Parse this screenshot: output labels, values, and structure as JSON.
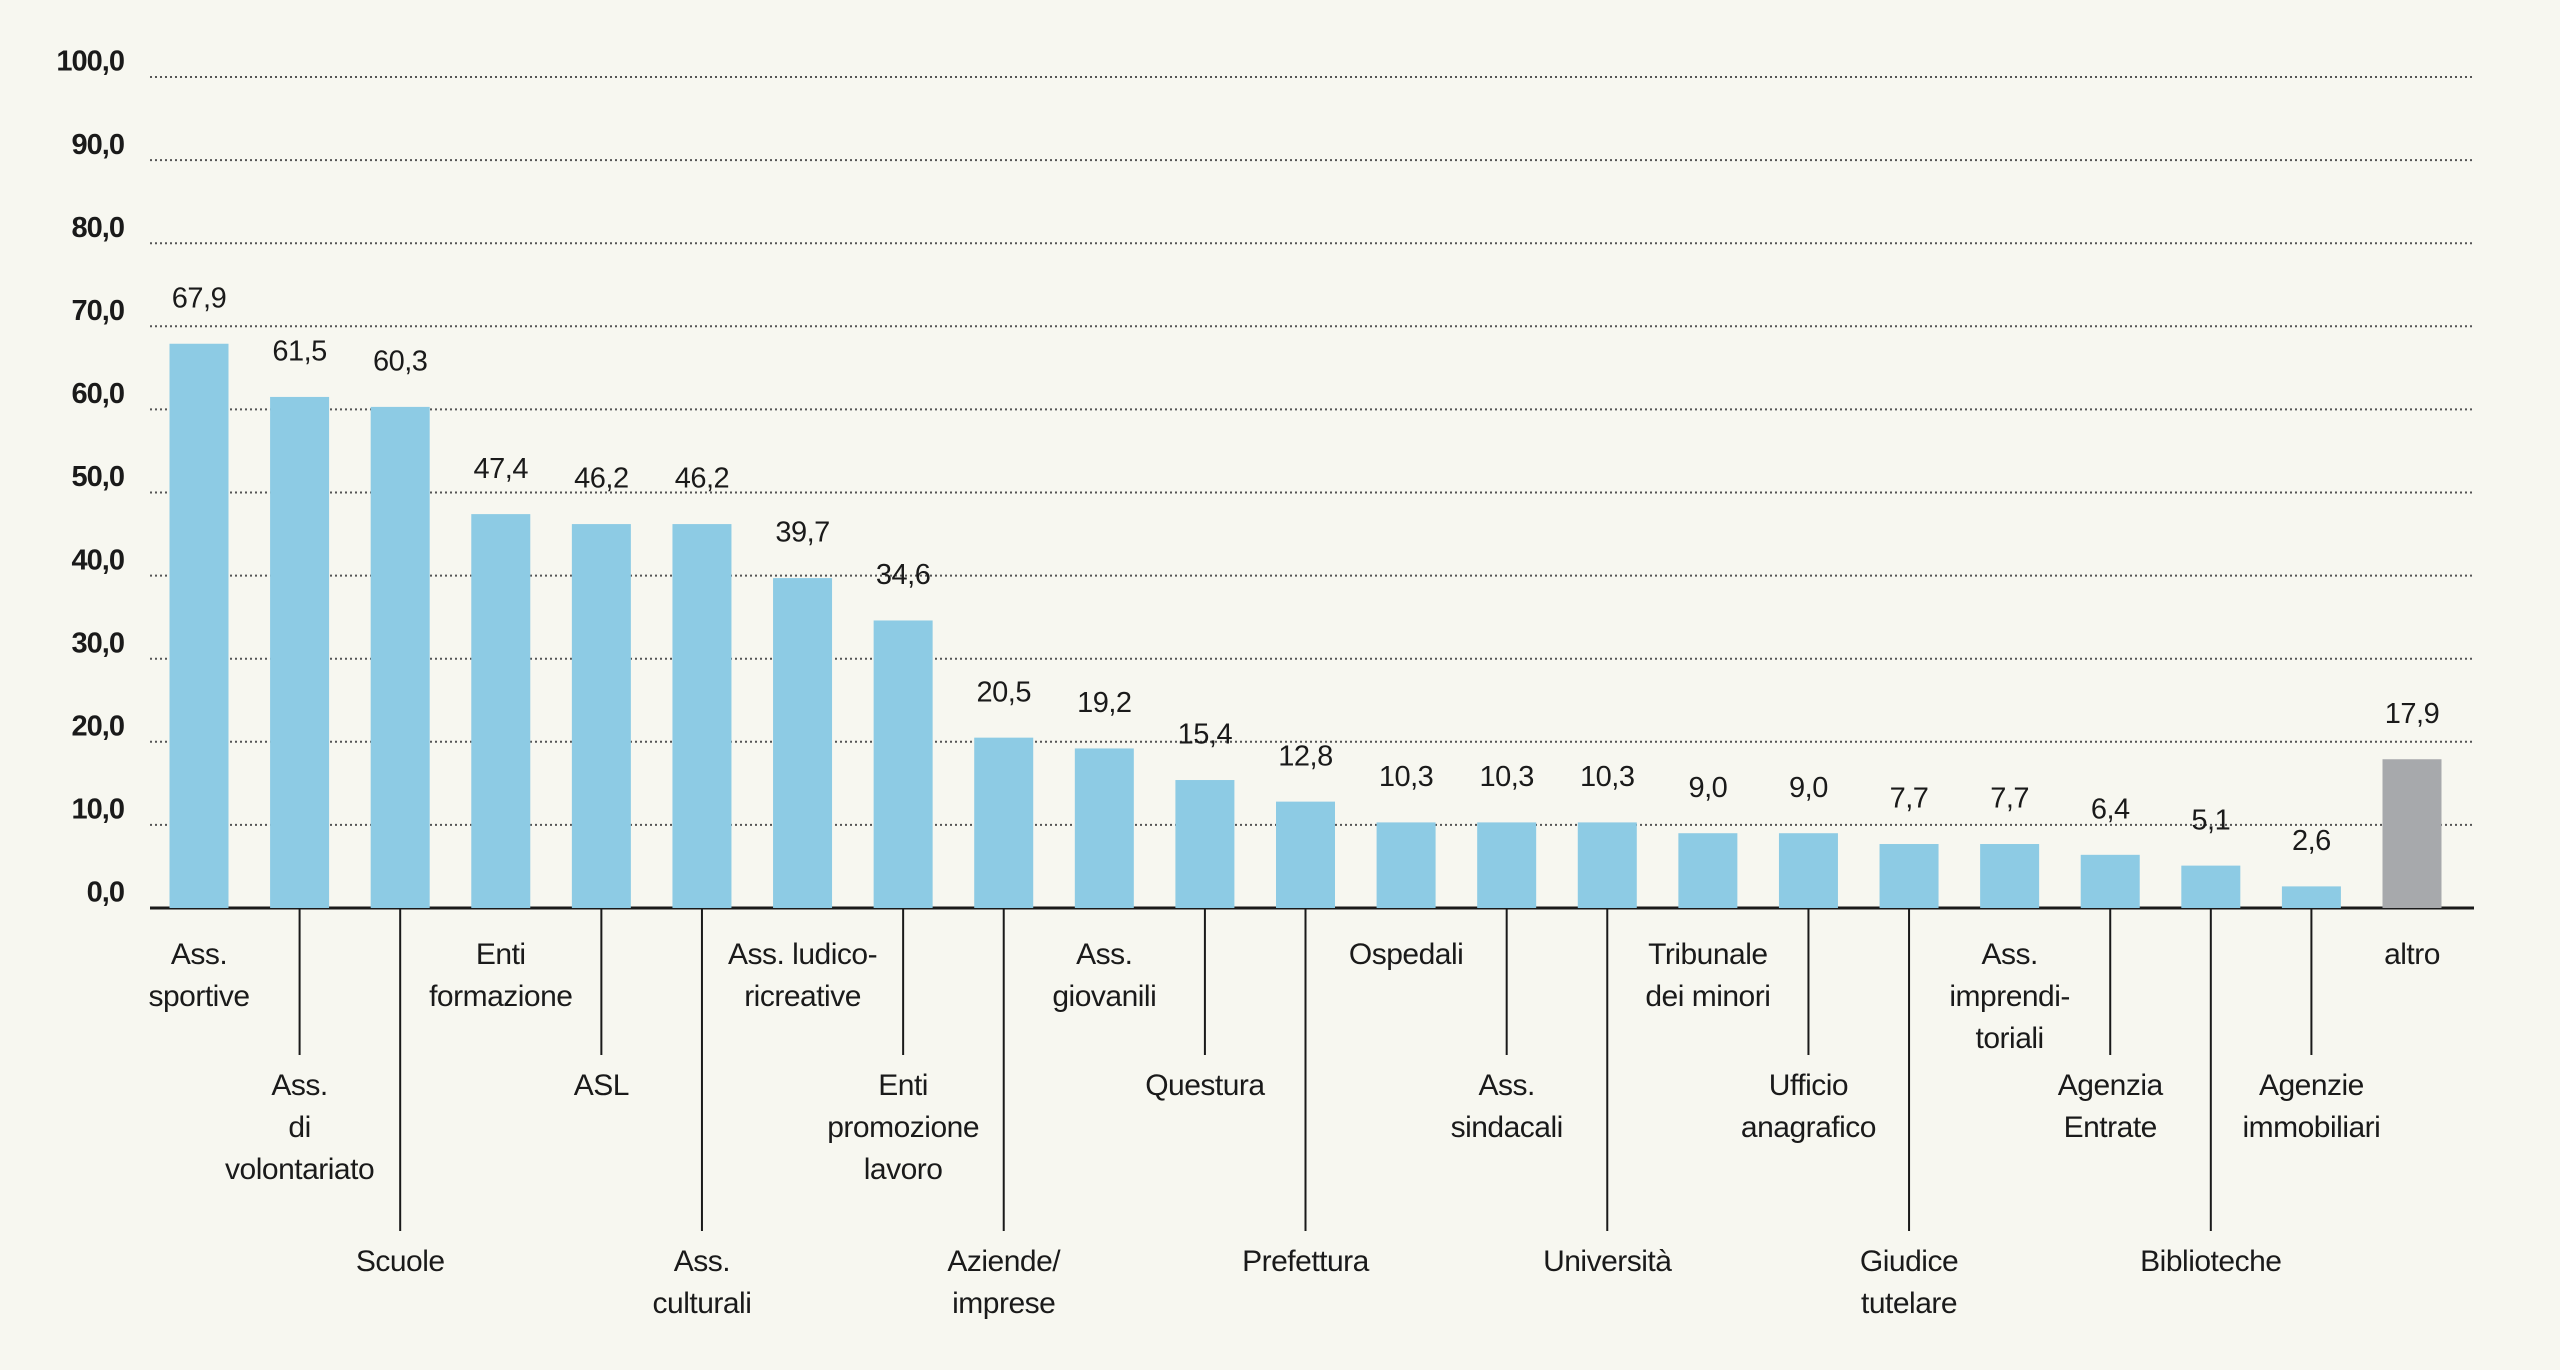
{
  "chart_data": {
    "type": "bar",
    "categories": [
      "Ass.\nsportive",
      "Ass.\ndi\nvolontariato",
      "Scuole",
      "Enti\nformazione",
      "ASL",
      "Ass.\nculturali",
      "Ass. ludico-\nricreative",
      "Enti\npromozione\nlavoro",
      "Aziende/\nimprese",
      "Ass.\ngiovanili",
      "Questura",
      "Prefettura",
      "Ospedali",
      "Ass.\nsindacali",
      "Università",
      "Tribunale\ndei minori",
      "Ufficio\nanagrafico",
      "Giudice\ntutelare",
      "Ass.\nimprendi-\ntoriali",
      "Agenzia\nEntrate",
      "Biblioteche",
      "Agenzie\nimmobiliari",
      "altro"
    ],
    "values": [
      67.9,
      61.5,
      60.3,
      47.4,
      46.2,
      46.2,
      39.7,
      34.6,
      20.5,
      19.2,
      15.4,
      12.8,
      10.3,
      10.3,
      10.3,
      9.0,
      9.0,
      7.7,
      7.7,
      6.4,
      5.1,
      2.6,
      17.9
    ],
    "value_labels": [
      "67,9",
      "61,5",
      "60,3",
      "47,4",
      "46,2",
      "46,2",
      "39,7",
      "34,6",
      "20,5",
      "19,2",
      "15,4",
      "12,8",
      "10,3",
      "10,3",
      "10,3",
      "9,0",
      "9,0",
      "7,7",
      "7,7",
      "6,4",
      "5,1",
      "2,6",
      "17,9"
    ],
    "colors": [
      "#8dcbe4",
      "#8dcbe4",
      "#8dcbe4",
      "#8dcbe4",
      "#8dcbe4",
      "#8dcbe4",
      "#8dcbe4",
      "#8dcbe4",
      "#8dcbe4",
      "#8dcbe4",
      "#8dcbe4",
      "#8dcbe4",
      "#8dcbe4",
      "#8dcbe4",
      "#8dcbe4",
      "#8dcbe4",
      "#8dcbe4",
      "#8dcbe4",
      "#8dcbe4",
      "#8dcbe4",
      "#8dcbe4",
      "#8dcbe4",
      "#a7a9ac"
    ],
    "ylim": [
      0,
      100
    ],
    "yticks": [
      {
        "value": 0,
        "label": "0,0"
      },
      {
        "value": 10,
        "label": "10,0"
      },
      {
        "value": 20,
        "label": "20,0"
      },
      {
        "value": 30,
        "label": "30,0"
      },
      {
        "value": 40,
        "label": "40,0"
      },
      {
        "value": 50,
        "label": "50,0"
      },
      {
        "value": 60,
        "label": "60,0"
      },
      {
        "value": 70,
        "label": "70,0"
      },
      {
        "value": 80,
        "label": "80,0"
      },
      {
        "value": 90,
        "label": "90,0"
      },
      {
        "value": 100,
        "label": "100,0"
      }
    ],
    "grid": true
  }
}
